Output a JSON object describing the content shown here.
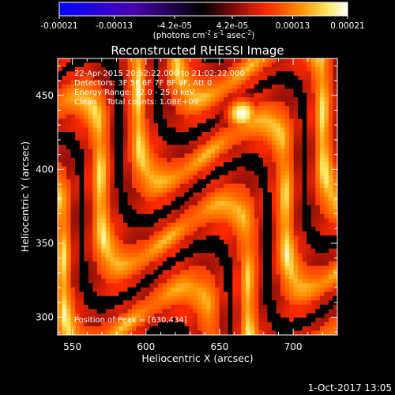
{
  "chart_data": {
    "type": "heatmap",
    "title": "Reconstructed RHESSI Image",
    "xlabel": "Heliocentric X (arcsec)",
    "ylabel": "Heliocentric Y (arcsec)",
    "xlim": [
      540,
      730
    ],
    "ylim": [
      288,
      475
    ],
    "x_ticks": [
      "550",
      "600",
      "650",
      "700"
    ],
    "x_tick_values": [
      550,
      600,
      650,
      700
    ],
    "y_ticks": [
      "300",
      "350",
      "400",
      "450"
    ],
    "y_tick_values": [
      300,
      350,
      400,
      450
    ],
    "colorbar": {
      "ticks": [
        "-0.00021",
        "-0.00013",
        "-4.2e-05",
        "4.2e-05",
        "0.00013",
        "0.00021"
      ],
      "tick_values": [
        -0.00021,
        -0.00013,
        -4.2e-05,
        4.2e-05,
        0.00013,
        0.00021
      ],
      "range": [
        -0.00021,
        0.00021
      ],
      "unit_parts": [
        "(photons cm",
        "-2",
        " s",
        "-1",
        " asec",
        "-2",
        ")"
      ],
      "colors": [
        "#0000ff",
        "#4b00b4",
        "#000000",
        "#7a0a0a",
        "#ff2a00",
        "#ff9000",
        "#ffe860",
        "#ffffff"
      ]
    },
    "annotations": [
      "22-Apr-2015 20:52:22.000 to 21:02:22.000",
      "Detectors: 3F 5F 6F 7F 8F 9F, Att 0",
      "Energy Range: 12.0 - 25.0 keV",
      "Clean    Total counts: 1.08E+04"
    ],
    "peak_label": "Position of Peak = [630,434]",
    "peak": [
      630,
      434
    ],
    "grid": false
  },
  "footer": {
    "date": "1-Oct-2017 13:05"
  }
}
